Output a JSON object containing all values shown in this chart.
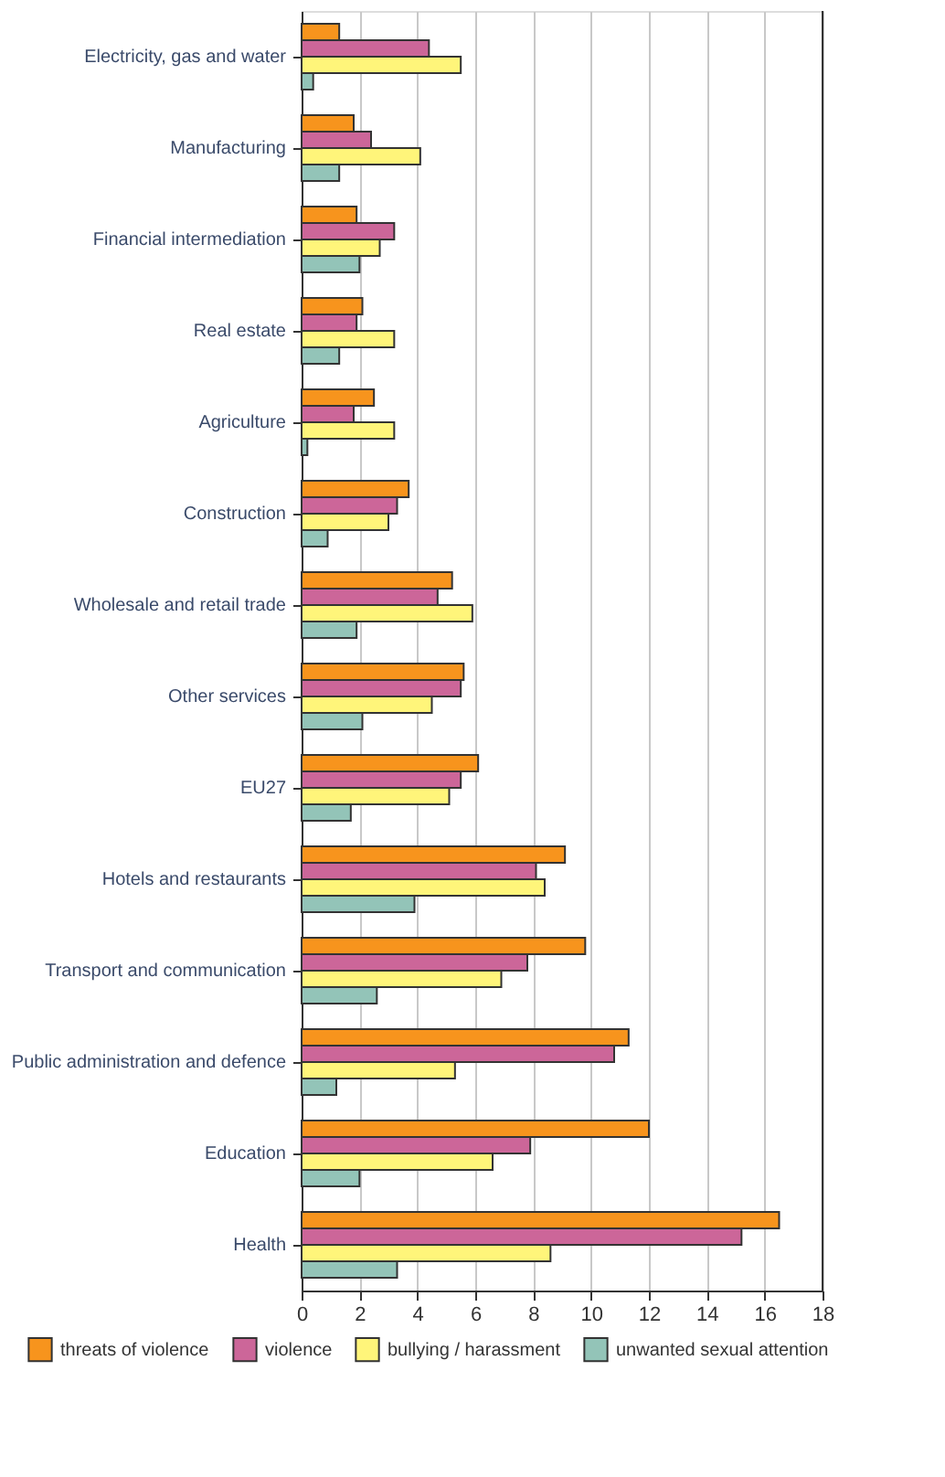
{
  "chart_data": {
    "type": "bar",
    "orientation": "horizontal",
    "legend": "bottom",
    "grid": "x",
    "categories": [
      "Electricity, gas and water",
      "Manufacturing",
      "Financial intermediation",
      "Real estate",
      "Agriculture",
      "Construction",
      "Wholesale and retail trade",
      "Other services",
      "EU27",
      "Hotels and restaurants",
      "Transport and communication",
      "Public administration and defence",
      "Education",
      "Health"
    ],
    "xlim": [
      0,
      18
    ],
    "xticks": [
      0,
      2,
      4,
      6,
      8,
      10,
      12,
      14,
      16,
      18
    ],
    "series": [
      {
        "name": "threats of violence",
        "color": "#f7941d",
        "values": [
          1.3,
          1.8,
          1.9,
          2.1,
          2.5,
          3.7,
          5.2,
          5.6,
          6.1,
          9.1,
          9.8,
          11.3,
          12.0,
          16.5
        ]
      },
      {
        "name": "violence",
        "color": "#cc6699",
        "values": [
          4.4,
          2.4,
          3.2,
          1.9,
          1.8,
          3.3,
          4.7,
          5.5,
          5.5,
          8.1,
          7.8,
          10.8,
          7.9,
          15.2
        ]
      },
      {
        "name": "bullying / harassment",
        "color": "#fff57a",
        "values": [
          5.5,
          4.1,
          2.7,
          3.2,
          3.2,
          3.0,
          5.9,
          4.5,
          5.1,
          8.4,
          6.9,
          5.3,
          6.6,
          8.6
        ]
      },
      {
        "name": "unwanted sexual attention",
        "color": "#93c4b8",
        "values": [
          0.4,
          1.3,
          2.0,
          1.3,
          0.2,
          0.9,
          1.9,
          2.1,
          1.7,
          3.9,
          2.6,
          1.2,
          2.0,
          3.3
        ]
      }
    ]
  }
}
